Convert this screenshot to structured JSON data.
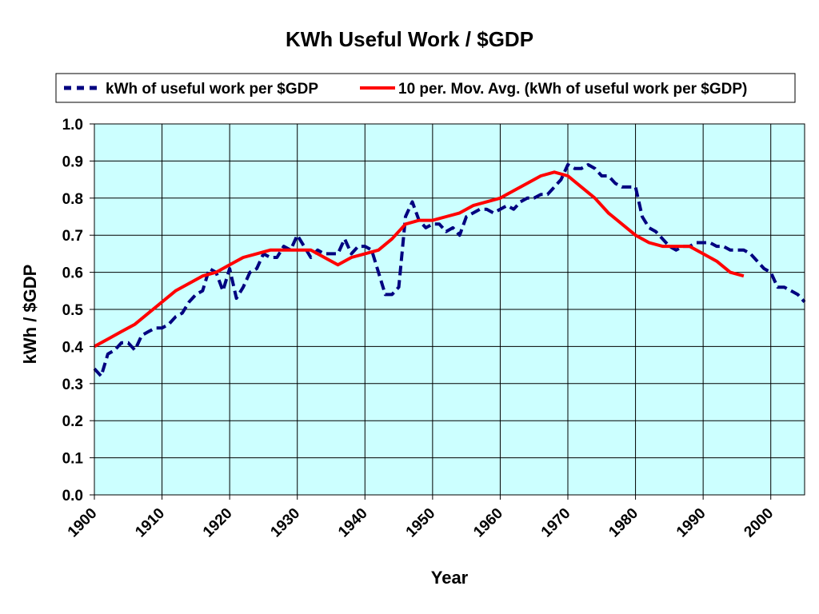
{
  "chart_data": {
    "type": "line",
    "title": "KWh Useful Work / $GDP",
    "xlabel": "Year",
    "ylabel": "kWh / $GDP",
    "xlim": [
      1900,
      2005
    ],
    "ylim": [
      0.0,
      1.0
    ],
    "x_ticks": [
      1900,
      1910,
      1920,
      1930,
      1940,
      1950,
      1960,
      1970,
      1980,
      1990,
      2000
    ],
    "x_tick_labels": [
      "1900",
      "1910",
      "1920",
      "1930",
      "1940",
      "1950",
      "1960",
      "1970",
      "1980",
      "1990",
      "2000"
    ],
    "y_ticks": [
      0.0,
      0.1,
      0.2,
      0.3,
      0.4,
      0.5,
      0.6,
      0.7,
      0.8,
      0.9,
      1.0
    ],
    "y_tick_labels": [
      "0.0",
      "0.1",
      "0.2",
      "0.3",
      "0.4",
      "0.5",
      "0.6",
      "0.7",
      "0.8",
      "0.9",
      "1.0"
    ],
    "grid": true,
    "plot_background": "#ccffff",
    "legend_position": "top",
    "series": [
      {
        "name": "kWh of useful work per $GDP",
        "color": "#000080",
        "style": "dashed",
        "points": [
          [
            1900,
            0.34
          ],
          [
            1901,
            0.32
          ],
          [
            1902,
            0.38
          ],
          [
            1903,
            0.39
          ],
          [
            1904,
            0.41
          ],
          [
            1905,
            0.41
          ],
          [
            1906,
            0.39
          ],
          [
            1907,
            0.43
          ],
          [
            1908,
            0.44
          ],
          [
            1909,
            0.45
          ],
          [
            1910,
            0.45
          ],
          [
            1911,
            0.46
          ],
          [
            1912,
            0.48
          ],
          [
            1913,
            0.49
          ],
          [
            1914,
            0.52
          ],
          [
            1915,
            0.54
          ],
          [
            1916,
            0.55
          ],
          [
            1917,
            0.61
          ],
          [
            1918,
            0.6
          ],
          [
            1919,
            0.55
          ],
          [
            1920,
            0.61
          ],
          [
            1921,
            0.53
          ],
          [
            1922,
            0.56
          ],
          [
            1923,
            0.6
          ],
          [
            1924,
            0.61
          ],
          [
            1925,
            0.65
          ],
          [
            1926,
            0.64
          ],
          [
            1927,
            0.64
          ],
          [
            1928,
            0.67
          ],
          [
            1929,
            0.66
          ],
          [
            1930,
            0.7
          ],
          [
            1931,
            0.67
          ],
          [
            1932,
            0.64
          ],
          [
            1933,
            0.66
          ],
          [
            1934,
            0.65
          ],
          [
            1935,
            0.65
          ],
          [
            1936,
            0.65
          ],
          [
            1937,
            0.69
          ],
          [
            1938,
            0.65
          ],
          [
            1939,
            0.67
          ],
          [
            1940,
            0.67
          ],
          [
            1941,
            0.66
          ],
          [
            1942,
            0.6
          ],
          [
            1943,
            0.54
          ],
          [
            1944,
            0.54
          ],
          [
            1945,
            0.56
          ],
          [
            1946,
            0.75
          ],
          [
            1947,
            0.79
          ],
          [
            1948,
            0.74
          ],
          [
            1949,
            0.72
          ],
          [
            1950,
            0.73
          ],
          [
            1951,
            0.73
          ],
          [
            1952,
            0.71
          ],
          [
            1953,
            0.72
          ],
          [
            1954,
            0.7
          ],
          [
            1955,
            0.75
          ],
          [
            1956,
            0.76
          ],
          [
            1957,
            0.77
          ],
          [
            1958,
            0.77
          ],
          [
            1959,
            0.76
          ],
          [
            1960,
            0.77
          ],
          [
            1961,
            0.78
          ],
          [
            1962,
            0.77
          ],
          [
            1963,
            0.79
          ],
          [
            1964,
            0.8
          ],
          [
            1965,
            0.8
          ],
          [
            1966,
            0.81
          ],
          [
            1967,
            0.81
          ],
          [
            1968,
            0.83
          ],
          [
            1969,
            0.85
          ],
          [
            1970,
            0.89
          ],
          [
            1971,
            0.88
          ],
          [
            1972,
            0.88
          ],
          [
            1973,
            0.89
          ],
          [
            1974,
            0.88
          ],
          [
            1975,
            0.86
          ],
          [
            1976,
            0.86
          ],
          [
            1977,
            0.84
          ],
          [
            1978,
            0.83
          ],
          [
            1979,
            0.83
          ],
          [
            1980,
            0.83
          ],
          [
            1981,
            0.75
          ],
          [
            1982,
            0.72
          ],
          [
            1983,
            0.71
          ],
          [
            1984,
            0.69
          ],
          [
            1985,
            0.67
          ],
          [
            1986,
            0.66
          ],
          [
            1987,
            0.67
          ],
          [
            1988,
            0.67
          ],
          [
            1989,
            0.68
          ],
          [
            1990,
            0.68
          ],
          [
            1991,
            0.68
          ],
          [
            1992,
            0.67
          ],
          [
            1993,
            0.67
          ],
          [
            1994,
            0.66
          ],
          [
            1995,
            0.66
          ],
          [
            1996,
            0.66
          ],
          [
            1997,
            0.65
          ],
          [
            1998,
            0.63
          ],
          [
            1999,
            0.61
          ],
          [
            2000,
            0.6
          ],
          [
            2001,
            0.56
          ],
          [
            2002,
            0.56
          ],
          [
            2003,
            0.55
          ],
          [
            2004,
            0.54
          ],
          [
            2005,
            0.52
          ]
        ]
      },
      {
        "name": "10 per. Mov. Avg. (kWh of useful work per $GDP)",
        "color": "#ff0000",
        "style": "solid",
        "points": [
          [
            1900,
            0.4
          ],
          [
            1902,
            0.42
          ],
          [
            1904,
            0.44
          ],
          [
            1906,
            0.46
          ],
          [
            1908,
            0.49
          ],
          [
            1910,
            0.52
          ],
          [
            1912,
            0.55
          ],
          [
            1914,
            0.57
          ],
          [
            1916,
            0.59
          ],
          [
            1918,
            0.6
          ],
          [
            1920,
            0.62
          ],
          [
            1922,
            0.64
          ],
          [
            1924,
            0.65
          ],
          [
            1926,
            0.66
          ],
          [
            1928,
            0.66
          ],
          [
            1930,
            0.66
          ],
          [
            1932,
            0.66
          ],
          [
            1934,
            0.64
          ],
          [
            1936,
            0.62
          ],
          [
            1938,
            0.64
          ],
          [
            1940,
            0.65
          ],
          [
            1942,
            0.66
          ],
          [
            1944,
            0.69
          ],
          [
            1946,
            0.73
          ],
          [
            1948,
            0.74
          ],
          [
            1950,
            0.74
          ],
          [
            1952,
            0.75
          ],
          [
            1954,
            0.76
          ],
          [
            1956,
            0.78
          ],
          [
            1958,
            0.79
          ],
          [
            1960,
            0.8
          ],
          [
            1962,
            0.82
          ],
          [
            1964,
            0.84
          ],
          [
            1966,
            0.86
          ],
          [
            1968,
            0.87
          ],
          [
            1970,
            0.86
          ],
          [
            1972,
            0.83
          ],
          [
            1974,
            0.8
          ],
          [
            1976,
            0.76
          ],
          [
            1978,
            0.73
          ],
          [
            1980,
            0.7
          ],
          [
            1982,
            0.68
          ],
          [
            1984,
            0.67
          ],
          [
            1986,
            0.67
          ],
          [
            1988,
            0.67
          ],
          [
            1990,
            0.65
          ],
          [
            1992,
            0.63
          ],
          [
            1994,
            0.6
          ],
          [
            1996,
            0.59
          ]
        ]
      }
    ]
  }
}
